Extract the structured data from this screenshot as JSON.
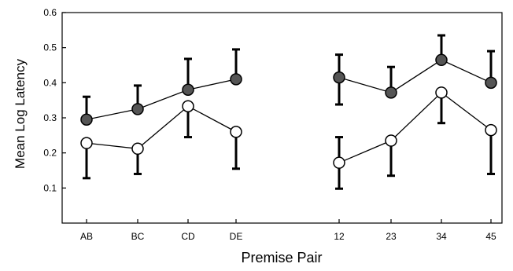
{
  "chart_data": {
    "type": "line",
    "title": "",
    "xlabel": "Premise Pair",
    "ylabel": "Mean Log Latency",
    "ylim": [
      0,
      0.6
    ],
    "yticks": [
      "0.1",
      "0.2",
      "0.3",
      "0.4",
      "0.5",
      "0.6"
    ],
    "grid": false,
    "groups": [
      {
        "categories": [
          "AB",
          "BC",
          "CD",
          "DE"
        ]
      },
      {
        "categories": [
          "12",
          "23",
          "34",
          "45"
        ]
      }
    ],
    "series": [
      {
        "marker": "filled",
        "color": "#555555",
        "values": [
          [
            0.295,
            0.325,
            0.38,
            0.41
          ],
          [
            0.415,
            0.372,
            0.465,
            0.4
          ]
        ],
        "err_low": [
          [
            0.295,
            0.325,
            0.38,
            0.41
          ],
          [
            0.338,
            0.372,
            0.465,
            0.4
          ]
        ],
        "err_high": [
          [
            0.36,
            0.392,
            0.468,
            0.495
          ],
          [
            0.48,
            0.445,
            0.535,
            0.49
          ]
        ]
      },
      {
        "marker": "open",
        "color": "#ffffff",
        "values": [
          [
            0.228,
            0.212,
            0.333,
            0.26
          ],
          [
            0.172,
            0.235,
            0.372,
            0.265
          ]
        ],
        "err_low": [
          [
            0.128,
            0.14,
            0.245,
            0.155
          ],
          [
            0.098,
            0.135,
            0.285,
            0.14
          ]
        ],
        "err_high": [
          [
            0.228,
            0.212,
            0.333,
            0.26
          ],
          [
            0.245,
            0.235,
            0.372,
            0.265
          ]
        ]
      }
    ]
  }
}
